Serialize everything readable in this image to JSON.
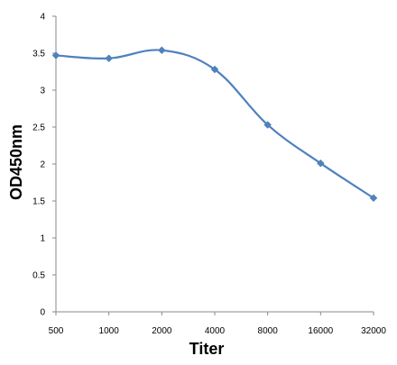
{
  "chart_data": {
    "type": "line",
    "title": "",
    "xlabel": "Titer",
    "ylabel": "OD450nm",
    "categories": [
      "500",
      "1000",
      "2000",
      "4000",
      "8000",
      "16000",
      "32000"
    ],
    "series": [
      {
        "values": [
          3.47,
          3.43,
          3.54,
          3.28,
          2.53,
          2.01,
          1.54
        ]
      }
    ],
    "ylim": [
      0,
      4
    ],
    "yticks": [
      "0",
      "0.5",
      "1",
      "1.5",
      "2",
      "2.5",
      "3",
      "3.5",
      "4"
    ],
    "grid": false,
    "legend": "none",
    "colors": {
      "line": "#4f81bd",
      "marker": "#4f81bd",
      "axis": "#888888"
    },
    "marker": "diamond",
    "smooth": true
  }
}
